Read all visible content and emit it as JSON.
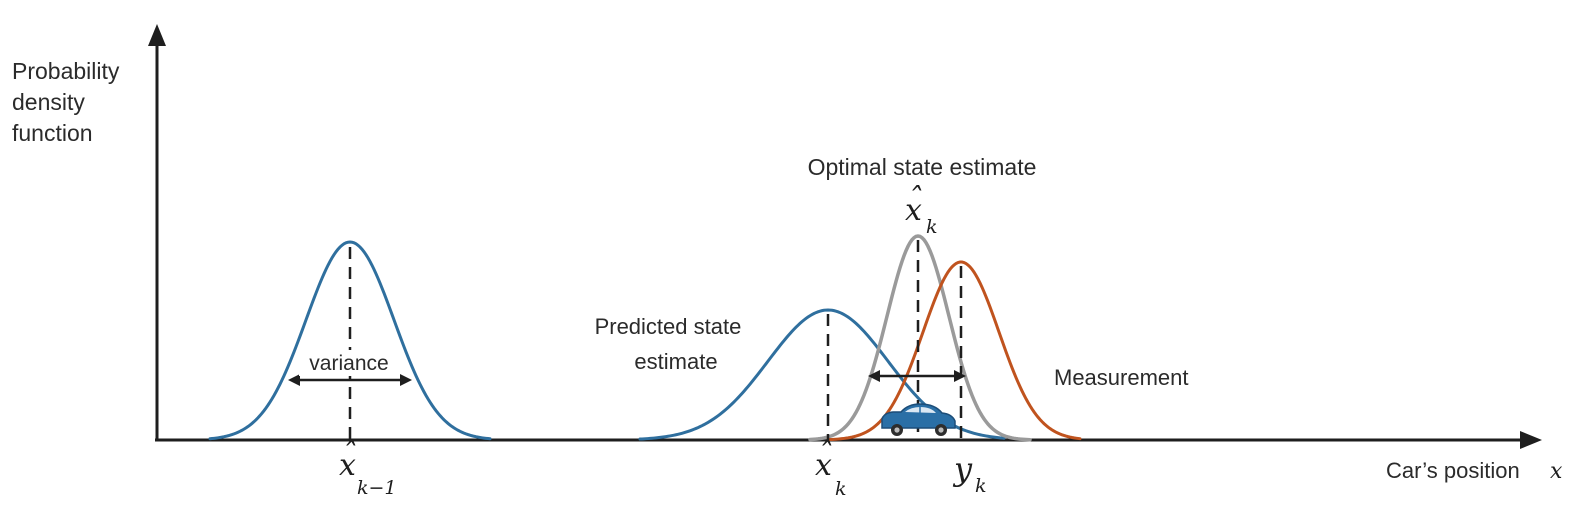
{
  "axes": {
    "y_label_lines": [
      "Probability",
      "density",
      "function"
    ],
    "x_label": "Car’s position",
    "x_label_var": "x"
  },
  "annotations": {
    "variance": "variance",
    "predicted_line1": "Predicted state",
    "predicted_line2": "estimate",
    "optimal": "Optimal state estimate",
    "measurement": "Measurement"
  },
  "math_labels": {
    "prev_estimate": {
      "base": "x",
      "hat": "ˆ",
      "sub": "k−1"
    },
    "predicted": {
      "base": "x",
      "hat": "ˆ",
      "sub": "k"
    },
    "optimal": {
      "base": "x",
      "hat": "ˆ",
      "sub": "k"
    },
    "measurement": {
      "base": "y",
      "sub": "k"
    }
  },
  "curves": {
    "previous_estimate": {
      "color": "#2f6f9e"
    },
    "predicted_estimate": {
      "color": "#2f6f9e"
    },
    "optimal_estimate": {
      "color": "#9a9a9a"
    },
    "measurement": {
      "color": "#c0531e"
    }
  },
  "icons": {
    "car": "car-icon"
  }
}
